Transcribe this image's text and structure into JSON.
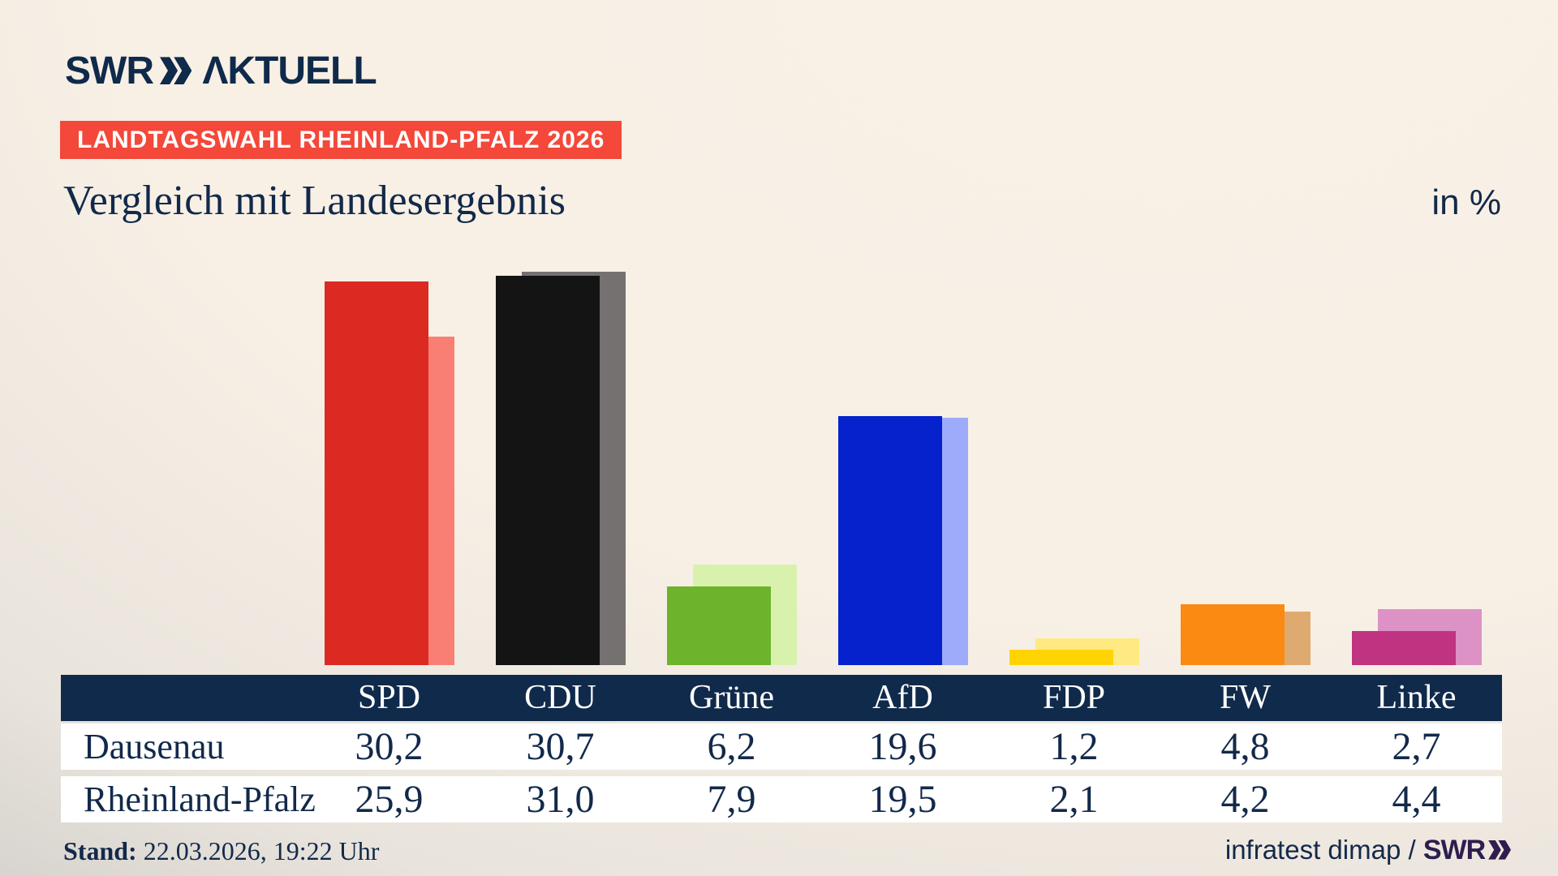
{
  "brand": {
    "swr": "SWR",
    "aktuell": "ΛKTUELL"
  },
  "badge": {
    "text": "LANDTAGSWAHL RHEINLAND-PFALZ 2026",
    "bg": "#f3483a"
  },
  "titlebar": {
    "title": "Vergleich mit Landesergebnis",
    "unit": "in %"
  },
  "chart_data": {
    "type": "bar",
    "title": "Vergleich mit Landesergebnis",
    "unit": "in %",
    "categories": [
      "SPD",
      "CDU",
      "Grüne",
      "AfD",
      "FDP",
      "FW",
      "Linke"
    ],
    "series": [
      {
        "name": "Dausenau",
        "values": [
          30.2,
          30.7,
          6.2,
          19.6,
          1.2,
          4.8,
          2.7
        ],
        "colors": [
          "#dc2a23",
          "#141414",
          "#6db32c",
          "#0522cc",
          "#ffd402",
          "#fb8a13",
          "#bf3381"
        ],
        "position": "front"
      },
      {
        "name": "Rheinland-Pfalz",
        "values": [
          25.9,
          31.0,
          7.9,
          19.5,
          2.1,
          4.2,
          4.4
        ],
        "colors": [
          "#f97f75",
          "#747170",
          "#d8f2ad",
          "#9dabfa",
          "#ffe982",
          "#dfaa70",
          "#dd92c6"
        ],
        "position": "back"
      }
    ],
    "ylim": [
      0,
      33
    ],
    "grid": false,
    "legend": "table-below",
    "value_format": "decimal-comma"
  },
  "table": {
    "header": [
      "SPD",
      "CDU",
      "Grüne",
      "AfD",
      "FDP",
      "FW",
      "Linke"
    ],
    "rows": [
      {
        "label": "Dausenau",
        "values": [
          "30,2",
          "30,7",
          "6,2",
          "19,6",
          "1,2",
          "4,8",
          "2,7"
        ]
      },
      {
        "label": "Rheinland-Pfalz",
        "values": [
          "25,9",
          "31,0",
          "7,9",
          "19,5",
          "2,1",
          "4,2",
          "4,4"
        ]
      }
    ]
  },
  "footer": {
    "stand_label": "Stand:",
    "stand_value": " 22.03.2026, 19:22 Uhr",
    "source": "infratest dimap / ",
    "source_brand": "SWR"
  },
  "colors": {
    "navy": "#12294a",
    "header_bg": "#102a4b",
    "badge_red": "#f3483a",
    "background_cream": "#f8f0e5",
    "background_gray": "#c8c5c1",
    "brand_purple": "#2e1d4e"
  }
}
